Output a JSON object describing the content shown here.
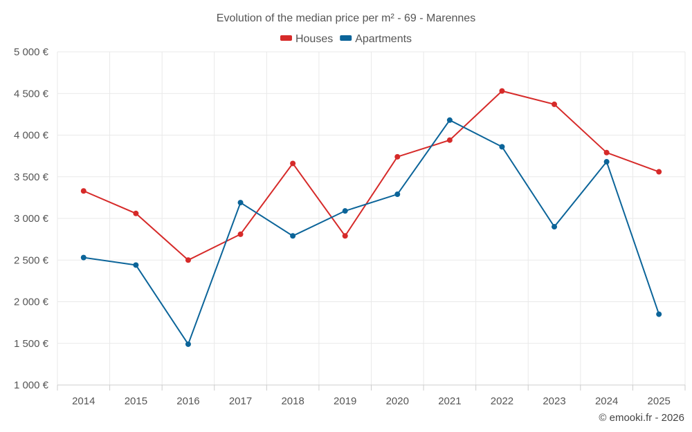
{
  "chart_data": {
    "type": "line",
    "title": "Evolution of the median price per m² - 69 - Marennes",
    "categories": [
      "2014",
      "2015",
      "2016",
      "2017",
      "2018",
      "2019",
      "2020",
      "2021",
      "2022",
      "2023",
      "2024",
      "2025"
    ],
    "series": [
      {
        "name": "Houses",
        "color": "#d62a29",
        "values": [
          3330,
          3060,
          2500,
          2810,
          3660,
          2790,
          3740,
          3940,
          4530,
          4370,
          3790,
          3560
        ]
      },
      {
        "name": "Apartments",
        "color": "#0b6499",
        "values": [
          2530,
          2440,
          1490,
          3190,
          2790,
          3090,
          3290,
          4180,
          3860,
          2900,
          3680,
          1850
        ]
      }
    ],
    "ylim": [
      1000,
      5000
    ],
    "yticks": [
      1000,
      1500,
      2000,
      2500,
      3000,
      3500,
      4000,
      4500,
      5000
    ],
    "ytick_labels": [
      "1 000 €",
      "1 500 €",
      "2 000 €",
      "2 500 €",
      "3 000 €",
      "3 500 €",
      "4 000 €",
      "4 500 €",
      "5 000 €"
    ],
    "xlabel": "",
    "ylabel": "",
    "grid": true,
    "legend_position": "top-center"
  },
  "credit": "© emooki.fr - 2026"
}
